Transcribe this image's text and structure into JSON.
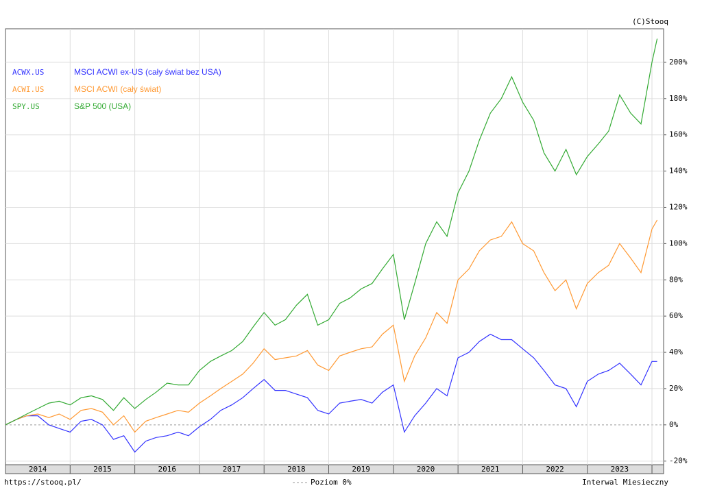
{
  "chart_data": {
    "type": "line",
    "credit": "(C)Stooq",
    "x": [
      2014,
      2014.17,
      2014.33,
      2014.5,
      2014.67,
      2014.83,
      2015,
      2015.17,
      2015.33,
      2015.5,
      2015.67,
      2015.83,
      2016,
      2016.17,
      2016.33,
      2016.5,
      2016.67,
      2016.83,
      2017,
      2017.17,
      2017.33,
      2017.5,
      2017.67,
      2017.83,
      2018,
      2018.17,
      2018.33,
      2018.5,
      2018.67,
      2018.83,
      2019,
      2019.17,
      2019.33,
      2019.5,
      2019.67,
      2019.83,
      2020,
      2020.17,
      2020.33,
      2020.5,
      2020.67,
      2020.83,
      2021,
      2021.17,
      2021.33,
      2021.5,
      2021.67,
      2021.83,
      2022,
      2022.17,
      2022.33,
      2022.5,
      2022.67,
      2022.83,
      2023,
      2023.17,
      2023.33,
      2023.5,
      2023.67,
      2023.83,
      2024,
      2024.08
    ],
    "series": [
      {
        "name": "ACWX.US",
        "description": "MSCI ACWI ex-US (cały świat bez USA)",
        "color": "#3333ff",
        "values": [
          0,
          3,
          5,
          5,
          0,
          -2,
          -4,
          2,
          3,
          0,
          -8,
          -6,
          -15,
          -9,
          -7,
          -6,
          -4,
          -6,
          -1,
          3,
          8,
          11,
          15,
          20,
          25,
          19,
          19,
          17,
          15,
          8,
          6,
          12,
          13,
          14,
          12,
          18,
          22,
          -4,
          5,
          12,
          20,
          16,
          37,
          40,
          46,
          50,
          47,
          47,
          42,
          37,
          30,
          22,
          20,
          10,
          24,
          28,
          30,
          34,
          28,
          22,
          35,
          35
        ]
      },
      {
        "name": "ACWI.US",
        "description": "MSCI ACWI (cały świat)",
        "color": "#ff9933",
        "values": [
          0,
          3,
          5,
          6,
          4,
          6,
          3,
          8,
          9,
          7,
          0,
          5,
          -4,
          2,
          4,
          6,
          8,
          7,
          12,
          16,
          20,
          24,
          28,
          34,
          42,
          36,
          37,
          38,
          41,
          33,
          30,
          38,
          40,
          42,
          43,
          50,
          55,
          24,
          38,
          48,
          62,
          56,
          80,
          86,
          96,
          102,
          104,
          112,
          100,
          96,
          84,
          74,
          80,
          64,
          78,
          84,
          88,
          100,
          92,
          84,
          108,
          113
        ]
      },
      {
        "name": "SPY.US",
        "description": "S&P 500 (USA)",
        "color": "#33aa33",
        "values": [
          0,
          3,
          6,
          9,
          12,
          13,
          11,
          15,
          16,
          14,
          8,
          15,
          9,
          14,
          18,
          23,
          22,
          22,
          30,
          35,
          38,
          41,
          46,
          54,
          62,
          55,
          58,
          66,
          72,
          55,
          58,
          67,
          70,
          75,
          78,
          86,
          94,
          58,
          78,
          100,
          112,
          104,
          128,
          140,
          157,
          172,
          180,
          192,
          178,
          168,
          150,
          140,
          152,
          138,
          148,
          155,
          162,
          182,
          172,
          166,
          200,
          213
        ]
      }
    ],
    "xlim": [
      2014,
      2024.18
    ],
    "xticks": [
      {
        "value": 2014.5,
        "label": "2014"
      },
      {
        "value": 2015.5,
        "label": "2015"
      },
      {
        "value": 2016.5,
        "label": "2016"
      },
      {
        "value": 2017.5,
        "label": "2017"
      },
      {
        "value": 2018.5,
        "label": "2018"
      },
      {
        "value": 2019.5,
        "label": "2019"
      },
      {
        "value": 2020.5,
        "label": "2020"
      },
      {
        "value": 2021.5,
        "label": "2021"
      },
      {
        "value": 2022.5,
        "label": "2022"
      },
      {
        "value": 2023.5,
        "label": "2023"
      }
    ],
    "xgrid": [
      2015,
      2016,
      2017,
      2018,
      2019,
      2020,
      2021,
      2022,
      2023,
      2024
    ],
    "ylim": [
      -22,
      218.5
    ],
    "yticks": [
      {
        "value": -20,
        "label": "-20%"
      },
      {
        "value": 0,
        "label": "0%"
      },
      {
        "value": 20,
        "label": "20%"
      },
      {
        "value": 40,
        "label": "40%"
      },
      {
        "value": 60,
        "label": "60%"
      },
      {
        "value": 80,
        "label": "80%"
      },
      {
        "value": 100,
        "label": "100%"
      },
      {
        "value": 120,
        "label": "120%"
      },
      {
        "value": 140,
        "label": "140%"
      },
      {
        "value": 160,
        "label": "160%"
      },
      {
        "value": 180,
        "label": "180%"
      },
      {
        "value": 200,
        "label": "200%"
      }
    ],
    "grid": true,
    "legend": "top-left",
    "footer": {
      "source": "https://stooq.pl/",
      "zero_line": "Poziom 0%",
      "interval": "Interwal Miesieczny"
    }
  }
}
